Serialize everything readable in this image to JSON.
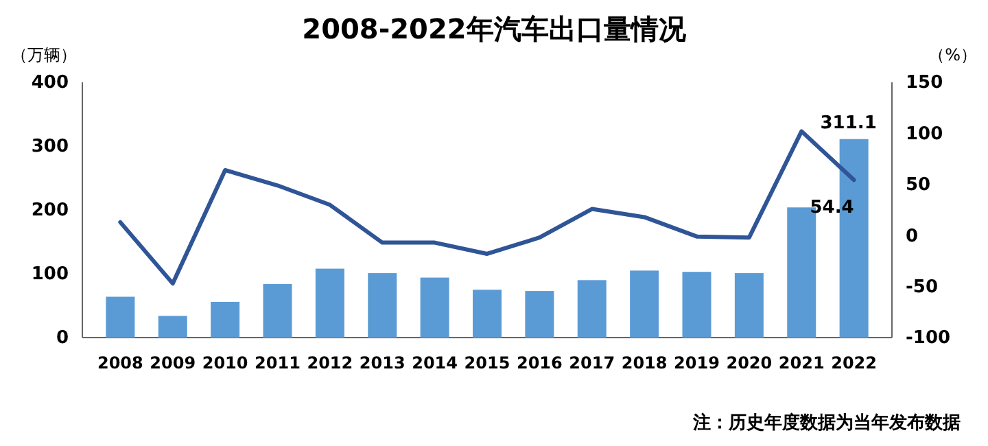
{
  "chart_data": {
    "type": "bar",
    "title": "2008-2022年汽车出口量情况",
    "ylabel": "（万辆）",
    "y2label": "（%）",
    "categories": [
      "2008",
      "2009",
      "2010",
      "2011",
      "2012",
      "2013",
      "2014",
      "2015",
      "2016",
      "2017",
      "2018",
      "2019",
      "2020",
      "2021",
      "2022"
    ],
    "series": [
      {
        "color": "#5b9bd5",
        "values": [
          64,
          34,
          56,
          84,
          108,
          101,
          94,
          75,
          73,
          90,
          105,
          103,
          101,
          204,
          311.1
        ],
        "value_labels": [
          null,
          null,
          null,
          null,
          null,
          null,
          null,
          null,
          null,
          null,
          null,
          null,
          null,
          null,
          "311.1"
        ]
      },
      {
        "type": "line",
        "axis": "y2",
        "color": "#2f5597",
        "values": [
          13,
          -47,
          64,
          49,
          30,
          -7,
          -7,
          -18,
          -2,
          26,
          18,
          -1,
          -2,
          102,
          54.4
        ],
        "value_labels": [
          null,
          null,
          null,
          null,
          null,
          null,
          null,
          null,
          null,
          null,
          null,
          null,
          null,
          null,
          "54.4"
        ]
      }
    ],
    "ylim": [
      0,
      400
    ],
    "yticks": [
      0,
      100,
      200,
      300,
      400
    ],
    "y2lim": [
      -100,
      150
    ],
    "y2ticks": [
      -100,
      -50,
      0,
      50,
      100,
      150
    ],
    "annotations": [
      "注：历史年度数据为当年发布数据"
    ],
    "grid": false
  }
}
